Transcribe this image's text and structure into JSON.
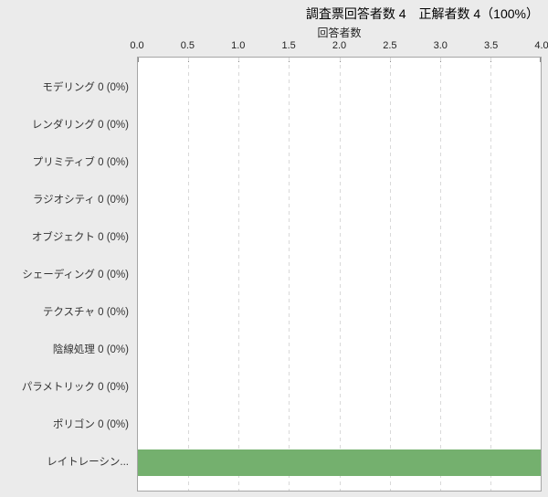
{
  "header": {
    "title": "調査票回答者数 4　正解者数 4（100%）"
  },
  "colors": {
    "background": "#ebebeb",
    "plot_background": "#ffffff",
    "plot_border": "#a6a6a6",
    "gridline": "#d9d9d9",
    "bar": "#74b06e",
    "text": "#333333"
  },
  "chart_data": {
    "type": "bar",
    "orientation": "horizontal",
    "xlabel": "回答者数",
    "xlim": [
      0,
      4
    ],
    "x_ticks": [
      "0.0",
      "0.5",
      "1.0",
      "1.5",
      "2.0",
      "2.5",
      "3.0",
      "3.5",
      "4.0"
    ],
    "grid": "vertical-dashed",
    "legend": "none",
    "bar_color": "#74b06e",
    "categories": [
      "モデリング",
      "レンダリング",
      "プリミティブ",
      "ラジオシティ",
      "オブジェクト",
      "シェーディング",
      "テクスチャ",
      "陰線処理",
      "パラメトリック",
      "ポリゴン",
      "レイトレーシン..."
    ],
    "values": [
      0,
      0,
      0,
      0,
      0,
      0,
      0,
      0,
      0,
      0,
      4
    ],
    "rows": [
      {
        "label": "モデリング 0 (0%)",
        "value": 0
      },
      {
        "label": "レンダリング 0 (0%)",
        "value": 0
      },
      {
        "label": "プリミティブ 0 (0%)",
        "value": 0
      },
      {
        "label": "ラジオシティ 0 (0%)",
        "value": 0
      },
      {
        "label": "オブジェクト 0 (0%)",
        "value": 0
      },
      {
        "label": "シェーディング 0 (0%)",
        "value": 0
      },
      {
        "label": "テクスチャ 0 (0%)",
        "value": 0
      },
      {
        "label": "陰線処理 0 (0%)",
        "value": 0
      },
      {
        "label": "パラメトリック 0 (0%)",
        "value": 0
      },
      {
        "label": "ポリゴン 0 (0%)",
        "value": 0
      },
      {
        "label": "レイトレーシン...",
        "value": 4
      }
    ]
  }
}
